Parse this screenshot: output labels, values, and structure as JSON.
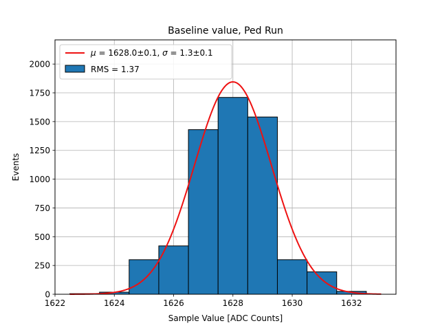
{
  "chart_data": {
    "type": "bar",
    "title": "Baseline value, Ped Run",
    "xlabel": "Sample Value [ADC Counts]",
    "ylabel": "Events",
    "xlim": [
      1622,
      1633.5
    ],
    "ylim": [
      0,
      2210
    ],
    "x_ticks": [
      1622,
      1624,
      1626,
      1628,
      1630,
      1632
    ],
    "y_ticks": [
      0,
      250,
      500,
      750,
      1000,
      1250,
      1500,
      1750,
      2000
    ],
    "grid": true,
    "legend_placement": "top-left",
    "histogram": {
      "name": "RMS = 1.37",
      "bin_edges": [
        1622.5,
        1623.5,
        1624.5,
        1625.5,
        1626.5,
        1627.5,
        1628.5,
        1629.5,
        1630.5,
        1631.5,
        1632.5
      ],
      "values": [
        5,
        18,
        300,
        420,
        1430,
        1710,
        1540,
        300,
        195,
        25
      ],
      "color": "#1f77b4",
      "edge_color": "#000000"
    },
    "fit": {
      "name": "$\\mu = 1628.0 \\pm 0.1$, $\\sigma = 1.3 \\pm 0.1$",
      "mu": 1628.0,
      "sigma": 1.3,
      "amplitude": 1845,
      "x_range": [
        1622.5,
        1633.0
      ],
      "color": "#ee1111"
    }
  },
  "legend": {
    "fit_label_mu": "μ",
    "fit_label_mid": " = 1628.0±0.1, ",
    "fit_label_sigma": "σ",
    "fit_label_end": " = 1.3±0.1",
    "hist_label": "RMS = 1.37"
  }
}
